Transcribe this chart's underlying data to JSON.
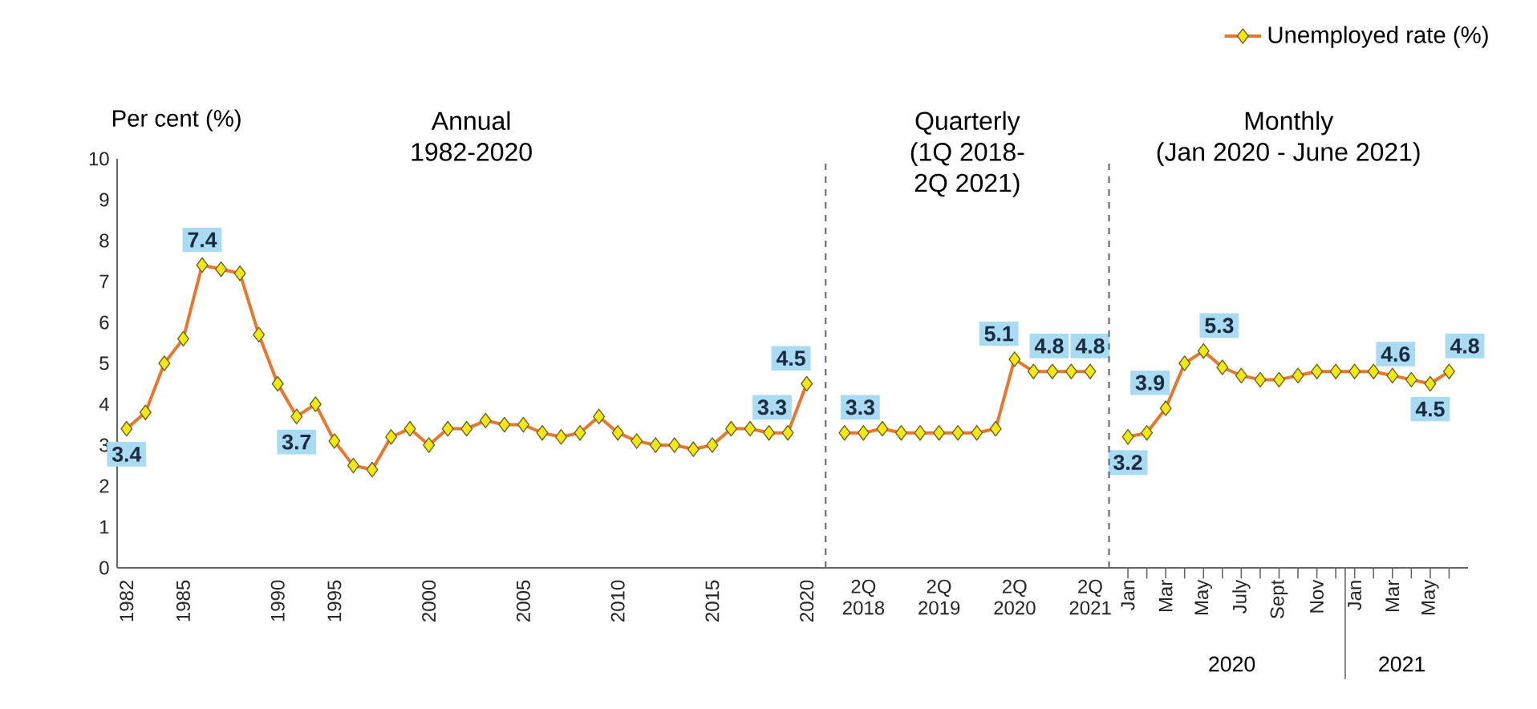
{
  "chart_data": {
    "type": "line",
    "ylabel": "Per cent (%)",
    "annotations": [
      "Annual",
      "1982-2020",
      "Quarterly",
      "(1Q 2018-",
      "2Q 2021)",
      "Monthly",
      "(Jan 2020 - June 2021)",
      "2020",
      "2021"
    ],
    "categories": [
      "1982",
      null,
      null,
      "1985",
      null,
      null,
      null,
      null,
      "1990",
      null,
      null,
      "1995",
      null,
      null,
      null,
      null,
      "2000",
      null,
      null,
      null,
      null,
      "2005",
      null,
      null,
      null,
      null,
      "2010",
      null,
      null,
      null,
      null,
      "2015",
      null,
      null,
      null,
      null,
      "2020",
      null,
      null,
      "2Q 2018",
      null,
      null,
      null,
      "2Q 2019",
      null,
      null,
      null,
      "2Q 2020",
      null,
      null,
      null,
      "2Q 2021",
      null,
      "Jan",
      null,
      "Mar",
      null,
      "May",
      null,
      "July",
      null,
      "Sept",
      null,
      "Nov",
      null,
      "Jan",
      null,
      "Mar",
      null,
      "May",
      null
    ],
    "ylim": [
      0,
      10
    ],
    "yticks": [
      0,
      1,
      2,
      3,
      4,
      5,
      6,
      7,
      8,
      9,
      10
    ],
    "legend": "top right",
    "marker": "diamond",
    "line_style": "solid",
    "series": [
      {
        "name": "Unemployed rate (%)",
        "color": "#e8772e",
        "values": [
          3.4,
          3.8,
          5.0,
          5.6,
          7.4,
          7.3,
          7.2,
          5.7,
          4.5,
          3.7,
          4.0,
          3.1,
          2.5,
          2.4,
          3.2,
          3.4,
          3.0,
          3.4,
          3.4,
          3.6,
          3.5,
          3.5,
          3.3,
          3.2,
          3.3,
          3.7,
          3.3,
          3.1,
          3.0,
          3.0,
          2.9,
          3.0,
          3.4,
          3.4,
          3.3,
          3.3,
          4.5,
          null,
          3.3,
          3.3,
          3.4,
          3.3,
          3.3,
          3.3,
          3.3,
          3.3,
          3.4,
          5.1,
          4.8,
          4.8,
          4.8,
          4.8,
          null,
          3.2,
          3.3,
          3.9,
          5.0,
          5.3,
          4.9,
          4.7,
          4.6,
          4.6,
          4.7,
          4.8,
          4.8,
          4.8,
          4.8,
          4.7,
          4.6,
          4.5,
          4.8
        ],
        "value_labels": [
          "3.4",
          null,
          null,
          null,
          "7.4",
          null,
          null,
          null,
          null,
          "3.7",
          null,
          null,
          null,
          null,
          null,
          null,
          null,
          null,
          null,
          null,
          null,
          null,
          null,
          null,
          null,
          null,
          null,
          null,
          null,
          null,
          null,
          null,
          null,
          null,
          null,
          "3.3",
          "4.5",
          null,
          "3.3",
          null,
          null,
          null,
          null,
          null,
          null,
          null,
          null,
          "5.1",
          "4.8",
          null,
          null,
          "4.8",
          null,
          "3.2",
          null,
          "3.9",
          null,
          "5.3",
          null,
          null,
          null,
          null,
          null,
          null,
          null,
          null,
          null,
          null,
          "4.6",
          "4.5",
          "4.8"
        ]
      }
    ]
  }
}
